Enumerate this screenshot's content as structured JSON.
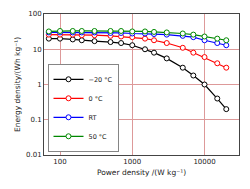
{
  "chart_data": {
    "type": "line",
    "xlabel": "Power density /(W kg⁻¹)",
    "ylabel": "Energy density/(Wh kg⁻¹)",
    "log": true,
    "grid": true,
    "legend": "lower left",
    "x": [
      70,
      100,
      150,
      200,
      300,
      500,
      700,
      1000,
      1500,
      2000,
      3000,
      5000,
      7000,
      10000,
      15000,
      20000
    ],
    "xlim": [
      60,
      30000
    ],
    "xticks": [
      100,
      1000,
      10000
    ],
    "ylim": [
      0.01,
      100
    ],
    "yticks": [
      0.01,
      0.1,
      1,
      10,
      100
    ],
    "series": [
      {
        "name": "−20 °C",
        "color": "#000000",
        "marker": "circle",
        "values": [
          20,
          20,
          19,
          18,
          17,
          16,
          15,
          13,
          10,
          8,
          5.5,
          3.0,
          1.8,
          1.0,
          0.4,
          0.2
        ]
      },
      {
        "name": "0 °C",
        "color": "#ff0000",
        "marker": "circle",
        "values": [
          26,
          26,
          26,
          25,
          25,
          24,
          23,
          22,
          20,
          18,
          15,
          11,
          8,
          6,
          4.0,
          3.0
        ]
      },
      {
        "name": "RT",
        "color": "#0000ff",
        "marker": "circle",
        "values": [
          30,
          30,
          30,
          30,
          30,
          29,
          29,
          28,
          28,
          27,
          26,
          24,
          22,
          18,
          15,
          13
        ]
      },
      {
        "name": "50 °C",
        "color": "#008800",
        "marker": "circle",
        "values": [
          32,
          33,
          33,
          33,
          33,
          33,
          33,
          32,
          32,
          31,
          30,
          28,
          26,
          23,
          20,
          18
        ]
      }
    ]
  }
}
